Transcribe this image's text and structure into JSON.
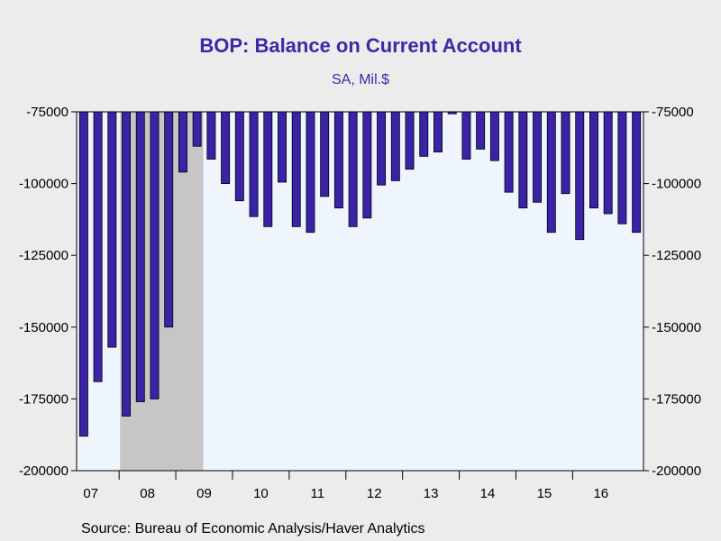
{
  "chart_data": {
    "type": "bar",
    "title": "BOP: Balance on Current Account",
    "subtitle": "SA, Mil.$",
    "ylim": [
      -200000,
      -75000
    ],
    "y_ticks": [
      -75000,
      -100000,
      -125000,
      -150000,
      -175000,
      -200000
    ],
    "y_tick_labels": [
      "-75000",
      "-100000",
      "-125000",
      "-150000",
      "-175000",
      "-200000"
    ],
    "x_tick_labels": [
      "07",
      "08",
      "09",
      "10",
      "11",
      "12",
      "13",
      "14",
      "15",
      "16"
    ],
    "categories": [
      "07Q2",
      "07Q3",
      "07Q4",
      "08Q1",
      "08Q2",
      "08Q3",
      "08Q4",
      "09Q1",
      "09Q2",
      "09Q3",
      "09Q4",
      "10Q1",
      "10Q2",
      "10Q3",
      "10Q4",
      "11Q1",
      "11Q2",
      "11Q3",
      "11Q4",
      "12Q1",
      "12Q2",
      "12Q3",
      "12Q4",
      "13Q1",
      "13Q2",
      "13Q3",
      "13Q4",
      "14Q1",
      "14Q2",
      "14Q3",
      "14Q4",
      "15Q1",
      "15Q2",
      "15Q3",
      "15Q4",
      "16Q1",
      "16Q2",
      "16Q3",
      "16Q4",
      "17Q1"
    ],
    "values": [
      -188000,
      -169000,
      -157000,
      -181000,
      -176000,
      -175000,
      -150000,
      -96000,
      -87000,
      -91500,
      -100000,
      -106000,
      -111500,
      -115000,
      -99500,
      -115000,
      -117000,
      -104500,
      -108500,
      -115000,
      -112000,
      -100500,
      -99000,
      -95000,
      -90500,
      -89000,
      -75700,
      -91500,
      -88000,
      -92000,
      -103000,
      -108500,
      -106500,
      -117000,
      -103500,
      -119500,
      -108500,
      -110500,
      -114000,
      -117000
    ],
    "bar_color": "#3a23a6",
    "recession_shading": {
      "from": "08Q1",
      "to": "09Q2",
      "color": "#c6c6c6"
    },
    "plot_background": "#eef5fd",
    "grid": false,
    "legend": "none"
  },
  "source": "Source:  Bureau of Economic Analysis/Haver Analytics"
}
